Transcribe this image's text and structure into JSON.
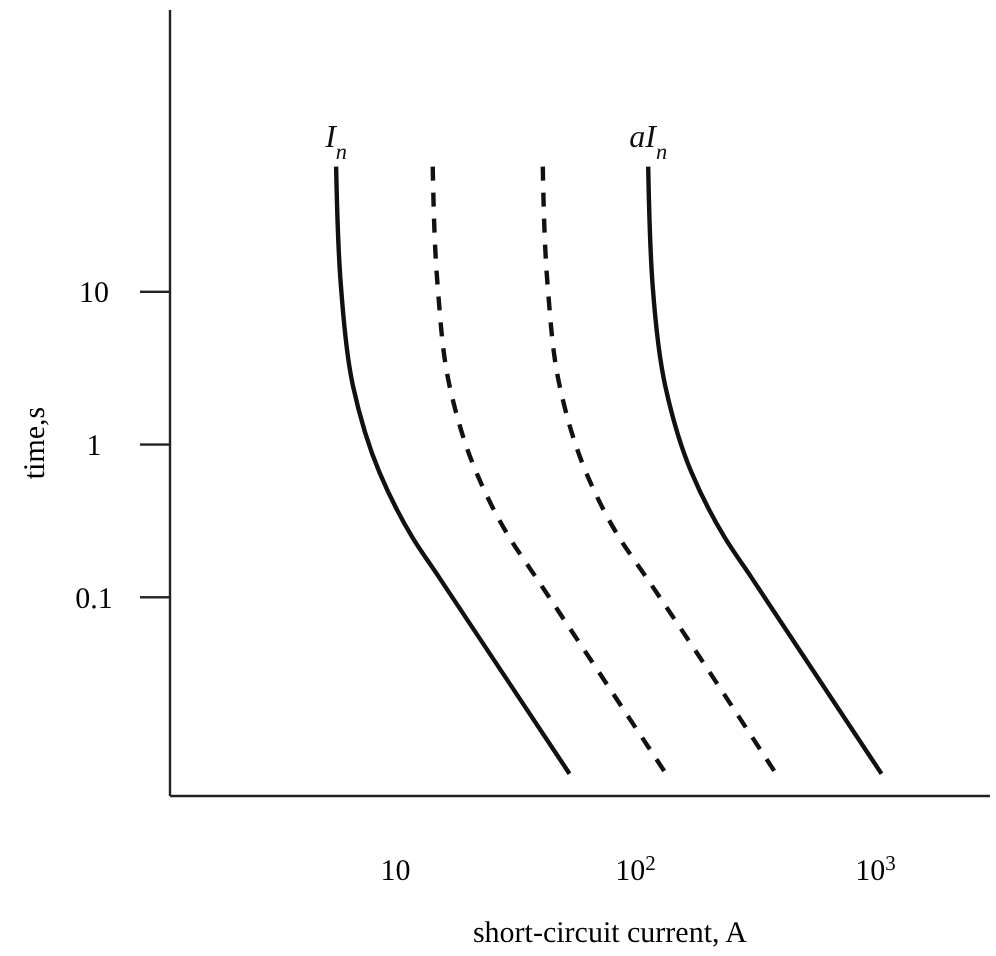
{
  "chart_data": {
    "type": "line",
    "xlabel": "short-circuit current, A",
    "ylabel": "time,s",
    "log": "xy",
    "xlim": [
      1.15,
      3000
    ],
    "ylim": [
      0.005,
      700
    ],
    "xticks": [
      10,
      {
        "value": 100,
        "label": "10$^{2}$"
      },
      {
        "value": 1000,
        "label": "10$^{3}$"
      }
    ],
    "yticks": [
      0.1,
      1,
      10
    ],
    "grid": false,
    "marker": "none",
    "series": [
      {
        "name": "I$_{n}$",
        "color": "#111111",
        "line_style": "solid",
        "x": [
          5.66,
          5.93,
          6.65,
          8.57,
          11.8,
          15.2,
          53.1
        ],
        "values": [
          66,
          10.8,
          2.43,
          0.66,
          0.245,
          0.135,
          0.007
        ]
      },
      {
        "color": "#111111",
        "line_style": "dashed",
        "x": [
          14.3,
          15.0,
          16.8,
          21.7,
          29.9,
          38.5,
          134
        ],
        "values": [
          66,
          10.8,
          2.43,
          0.66,
          0.245,
          0.135,
          0.007
        ]
      },
      {
        "color": "#111111",
        "line_style": "dashed",
        "x": [
          41.1,
          43.1,
          48.3,
          62.2,
          85.7,
          111,
          385
        ],
        "values": [
          66,
          10.8,
          2.43,
          0.66,
          0.245,
          0.135,
          0.007
        ]
      },
      {
        "name": "aI$_{n}$",
        "color": "#111111",
        "line_style": "solid",
        "x": [
          113,
          118,
          133,
          171,
          236,
          304,
          1059
        ],
        "values": [
          66,
          10.8,
          2.43,
          0.66,
          0.245,
          0.135,
          0.007
        ]
      }
    ]
  }
}
